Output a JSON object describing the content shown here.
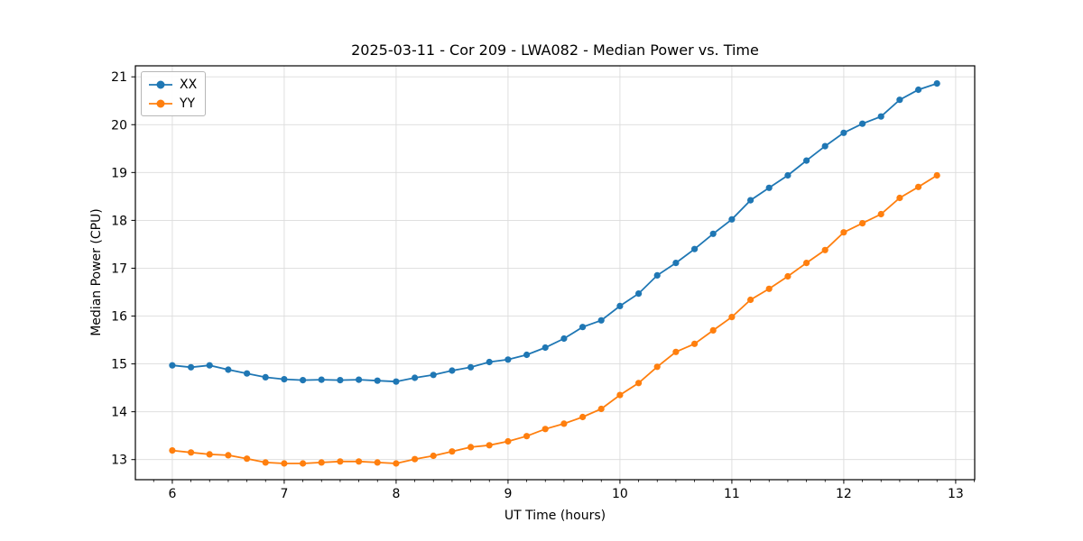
{
  "chart_data": {
    "type": "line",
    "title": "2025-03-11 - Cor 209 - LWA082 - Median Power vs. Time",
    "xlabel": "UT Time (hours)",
    "ylabel": "Median Power (CPU)",
    "x": [
      6.0,
      6.167,
      6.333,
      6.5,
      6.667,
      6.833,
      7.0,
      7.167,
      7.333,
      7.5,
      7.667,
      7.833,
      8.0,
      8.167,
      8.333,
      8.5,
      8.667,
      8.833,
      9.0,
      9.167,
      9.333,
      9.5,
      9.667,
      9.833,
      10.0,
      10.167,
      10.333,
      10.5,
      10.667,
      10.833,
      11.0,
      11.167,
      11.333,
      11.5,
      11.667,
      11.833,
      12.0,
      12.167,
      12.333,
      12.5,
      12.667,
      12.833
    ],
    "series": [
      {
        "name": "XX",
        "color": "#1f77b4",
        "marker": "circle",
        "values": [
          14.97,
          14.93,
          14.97,
          14.88,
          14.8,
          14.72,
          14.68,
          14.66,
          14.67,
          14.66,
          14.67,
          14.65,
          14.63,
          14.71,
          14.77,
          14.86,
          14.93,
          15.04,
          15.09,
          15.19,
          15.34,
          15.53,
          15.77,
          15.91,
          16.21,
          16.47,
          16.85,
          17.11,
          17.4,
          17.72,
          18.02,
          18.42,
          18.68,
          18.94,
          19.25,
          19.55,
          19.83,
          20.02,
          20.17,
          20.52,
          20.73,
          20.86
        ]
      },
      {
        "name": "YY",
        "color": "#ff7f0e",
        "marker": "circle",
        "values": [
          13.19,
          13.15,
          13.11,
          13.09,
          13.02,
          12.94,
          12.92,
          12.92,
          12.94,
          12.96,
          12.96,
          12.94,
          12.92,
          13.01,
          13.08,
          13.17,
          13.26,
          13.3,
          13.38,
          13.49,
          13.64,
          13.75,
          13.89,
          14.06,
          14.35,
          14.6,
          14.94,
          15.25,
          15.42,
          15.7,
          15.98,
          16.34,
          16.57,
          16.83,
          17.11,
          17.38,
          17.75,
          17.94,
          18.13,
          18.47,
          18.7,
          18.94
        ]
      }
    ],
    "xlim": [
      5.67,
      13.17
    ],
    "ylim": [
      12.58,
      21.23
    ],
    "x_ticks": [
      6,
      7,
      8,
      9,
      10,
      11,
      12,
      13
    ],
    "y_ticks": [
      13,
      14,
      15,
      16,
      17,
      18,
      19,
      20,
      21
    ],
    "x_minor_ticks_per_hour": 6,
    "grid": true,
    "grid_color": "#dcdcdc",
    "axis_color": "#000000",
    "legend": {
      "position": "upper-left"
    }
  }
}
